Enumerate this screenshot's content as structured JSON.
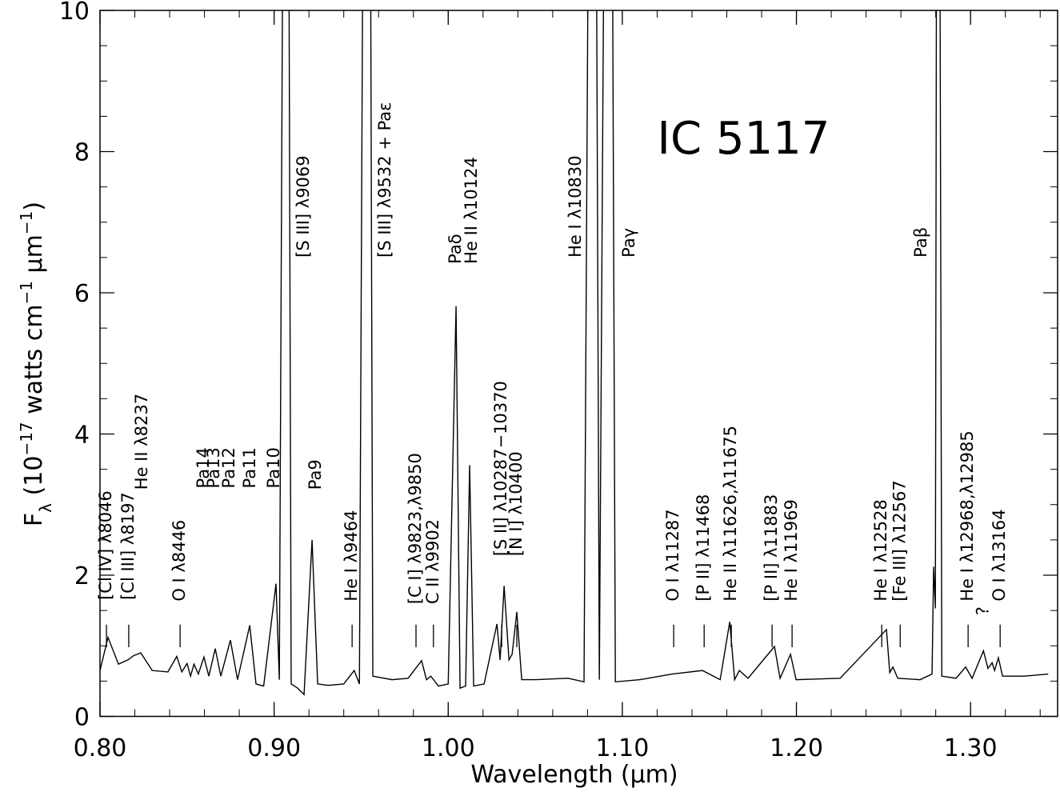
{
  "chart_data": {
    "type": "line",
    "title": "IC 5117",
    "title_pos": {
      "x": 1.12,
      "y": 8.2
    },
    "xlabel": "Wavelength (µm)",
    "ylabel": [
      {
        "text": "F",
        "shift": "base"
      },
      {
        "text": "λ",
        "shift": "sub"
      },
      {
        "text": " (10",
        "shift": "base"
      },
      {
        "text": "−17",
        "shift": "super"
      },
      {
        "text": " watts cm",
        "shift": "base"
      },
      {
        "text": "−1",
        "shift": "super"
      },
      {
        "text": " µm",
        "shift": "base"
      },
      {
        "text": "−1",
        "shift": "super"
      },
      {
        "text": ")",
        "shift": "base"
      }
    ],
    "color": "#000000",
    "xlim": [
      0.8,
      1.35
    ],
    "ylim": [
      0,
      10
    ],
    "xticks": [
      {
        "value": 0.8,
        "label": "0.80"
      },
      {
        "value": 0.9,
        "label": "0.90"
      },
      {
        "value": 1.0,
        "label": "1.00"
      },
      {
        "value": 1.1,
        "label": "1.10"
      },
      {
        "value": 1.2,
        "label": "1.20"
      },
      {
        "value": 1.3,
        "label": "1.30"
      }
    ],
    "yticks": [
      0,
      2,
      4,
      6,
      8,
      10
    ],
    "x": [
      0.8,
      0.8046,
      0.8106,
      0.816,
      0.8193,
      0.8234,
      0.83,
      0.839,
      0.8441,
      0.847,
      0.85,
      0.852,
      0.854,
      0.8565,
      0.8597,
      0.8625,
      0.8662,
      0.8694,
      0.8749,
      0.879,
      0.886,
      0.8896,
      0.894,
      0.9011,
      0.903,
      0.9057,
      0.908,
      0.9098,
      0.9135,
      0.9172,
      0.9218,
      0.925,
      0.931,
      0.94,
      0.946,
      0.949,
      0.9517,
      0.9549,
      0.9567,
      0.9677,
      0.977,
      0.9847,
      0.9875,
      0.99,
      0.9944,
      1.0,
      1.0045,
      1.0068,
      1.01,
      1.0123,
      1.0146,
      1.0206,
      1.028,
      1.0298,
      1.0321,
      1.0349,
      1.0367,
      1.0394,
      1.0422,
      1.0505,
      1.0688,
      1.078,
      1.0813,
      1.0845,
      1.0868,
      1.0904,
      1.0937,
      1.096,
      1.1102,
      1.1286,
      1.146,
      1.1562,
      1.1617,
      1.1645,
      1.1672,
      1.1722,
      1.1874,
      1.1906,
      1.1966,
      1.1998,
      1.2251,
      1.2517,
      1.2536,
      1.2554,
      1.2582,
      1.271,
      1.2779,
      1.2788,
      1.2798,
      1.2807,
      1.282,
      1.2835,
      1.2917,
      1.2972,
      1.3009,
      1.3074,
      1.31,
      1.3124,
      1.3138,
      1.316,
      1.3184,
      1.3308,
      1.3446
    ],
    "values": [
      0.65,
      1.12,
      0.74,
      0.8,
      0.86,
      0.9,
      0.65,
      0.63,
      0.85,
      0.63,
      0.75,
      0.57,
      0.74,
      0.6,
      0.84,
      0.57,
      0.96,
      0.57,
      1.08,
      0.52,
      1.29,
      0.46,
      0.43,
      1.88,
      0.52,
      15,
      15,
      0.46,
      0.4,
      0.31,
      2.5,
      0.46,
      0.44,
      0.46,
      0.65,
      0.46,
      15,
      15,
      0.57,
      0.52,
      0.54,
      0.79,
      0.52,
      0.57,
      0.43,
      0.46,
      5.81,
      0.4,
      0.43,
      3.56,
      0.43,
      0.46,
      1.31,
      0.8,
      1.85,
      0.8,
      0.88,
      1.48,
      0.52,
      0.52,
      0.54,
      0.49,
      15,
      15,
      0.52,
      15,
      15,
      0.49,
      0.52,
      0.6,
      0.65,
      0.52,
      1.34,
      0.52,
      0.65,
      0.54,
      0.99,
      0.54,
      0.88,
      0.52,
      0.54,
      1.23,
      0.62,
      0.7,
      0.54,
      0.52,
      0.6,
      2.12,
      1.53,
      15,
      15,
      0.57,
      0.54,
      0.7,
      0.54,
      0.93,
      0.68,
      0.76,
      0.65,
      0.83,
      0.57,
      0.57,
      0.6
    ],
    "annotations": [
      {
        "text": "[Cl IV] λ8046",
        "x": 0.8037,
        "y": 1.65
      },
      {
        "text": "[Cl III] λ8197",
        "x": 0.8165,
        "y": 1.65
      },
      {
        "text": "He II λ8237",
        "x": 0.8244,
        "y": 3.21
      },
      {
        "text": "O I λ8446",
        "x": 0.846,
        "y": 1.63
      },
      {
        "text": "Pa14",
        "x": 0.8597,
        "y": 3.23
      },
      {
        "text": "Pa13",
        "x": 0.8657,
        "y": 3.23
      },
      {
        "text": "Pa12",
        "x": 0.8744,
        "y": 3.23
      },
      {
        "text": "Pa11",
        "x": 0.8864,
        "y": 3.23
      },
      {
        "text": "Pa10",
        "x": 0.9002,
        "y": 3.23
      },
      {
        "text": "[S III] λ9069",
        "x": 0.9172,
        "y": 6.5
      },
      {
        "text": "Pa9",
        "x": 0.9241,
        "y": 3.21
      },
      {
        "text": "He I λ9464",
        "x": 0.9448,
        "y": 1.63
      },
      {
        "text": "[S III] λ9532 + Paε",
        "x": 0.964,
        "y": 6.5
      },
      {
        "text": "[C I] λ9823,λ9850",
        "x": 0.9815,
        "y": 1.59
      },
      {
        "text": "C II λ9902",
        "x": 0.9915,
        "y": 1.59
      },
      {
        "text": "Paδ",
        "x": 1.0045,
        "y": 6.41
      },
      {
        "text": "He II λ10124",
        "x": 1.0137,
        "y": 6.41
      },
      {
        "text": "[S II] λ10287−10370",
        "x": 1.0307,
        "y": 2.27
      },
      {
        "text": "[N I] λ10400",
        "x": 1.0394,
        "y": 2.27
      },
      {
        "text": "He I λ10830",
        "x": 1.0734,
        "y": 6.5
      },
      {
        "text": "Paγ",
        "x": 1.1042,
        "y": 6.5
      },
      {
        "text": "O I λ11287",
        "x": 1.1295,
        "y": 1.63
      },
      {
        "text": "[P II] λ11468",
        "x": 1.147,
        "y": 1.63
      },
      {
        "text": "He II λ11626,λ11675",
        "x": 1.1626,
        "y": 1.63
      },
      {
        "text": "[P II] λ11883",
        "x": 1.186,
        "y": 1.63
      },
      {
        "text": "He I λ11969",
        "x": 1.1975,
        "y": 1.63
      },
      {
        "text": "He I λ12528",
        "x": 1.249,
        "y": 1.63
      },
      {
        "text": "[Fe III] λ12567",
        "x": 1.2596,
        "y": 1.63
      },
      {
        "text": "Paβ",
        "x": 1.272,
        "y": 6.5
      },
      {
        "text": "He I λ12968,λ12985",
        "x": 1.2986,
        "y": 1.63
      },
      {
        "text": "?",
        "x": 1.3075,
        "y": 1.43
      },
      {
        "text": "O I λ13164",
        "x": 1.317,
        "y": 1.63
      }
    ]
  }
}
